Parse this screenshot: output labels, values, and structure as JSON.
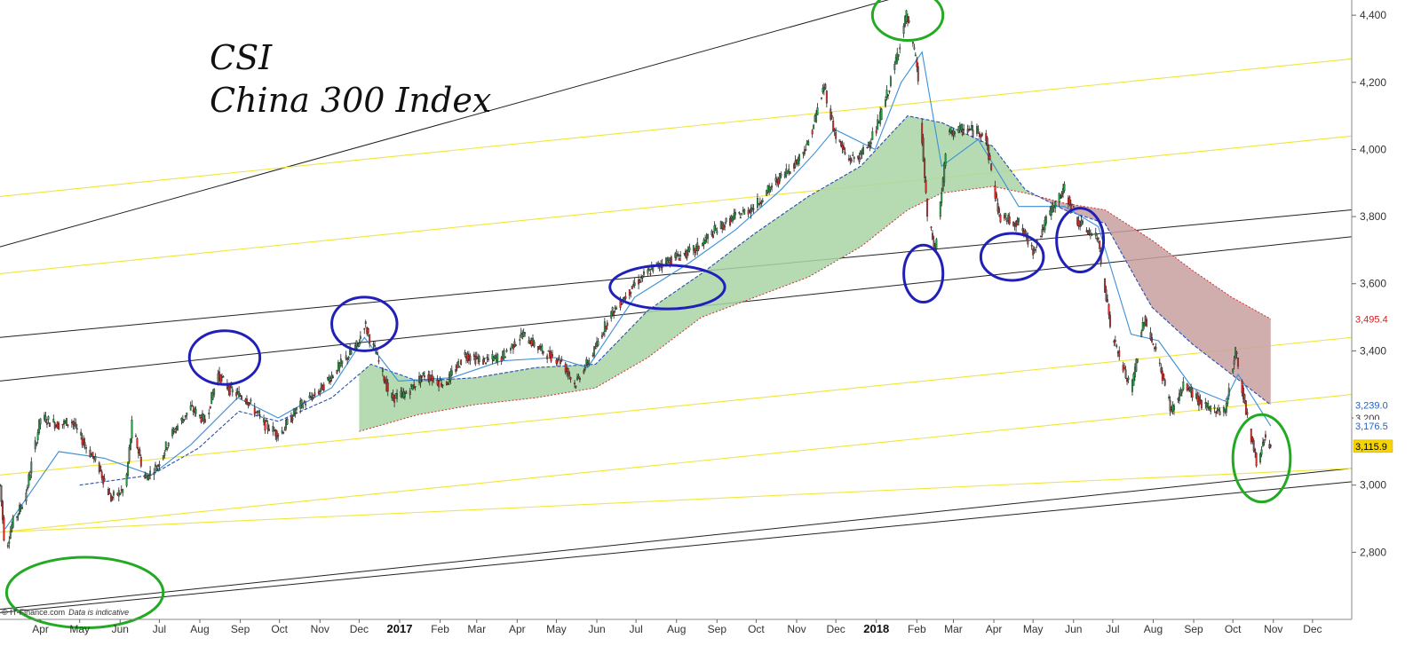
{
  "chart_data": {
    "type": "candlestick",
    "title": [
      "CSI",
      "China 300 Index"
    ],
    "credit": "© IT-Finance.com",
    "credit_note": "Data is indicative",
    "y_axis": {
      "position": "right",
      "range": [
        2600,
        4440
      ],
      "ticks": [
        2800,
        3000,
        3200,
        3400,
        3600,
        3800,
        4000,
        4200,
        4400
      ],
      "tick_labels": [
        "2,800",
        "3,000",
        "3,200",
        "3,400",
        "3,600",
        "3,800",
        "4,000",
        "4,200",
        "4,400"
      ]
    },
    "x_axis": {
      "range": [
        "2016-03-01",
        "2018-12-31"
      ],
      "labels": [
        {
          "date": "2016-04-01",
          "text": "Apr"
        },
        {
          "date": "2016-05-01",
          "text": "May"
        },
        {
          "date": "2016-06-01",
          "text": "Jun"
        },
        {
          "date": "2016-07-01",
          "text": "Jul"
        },
        {
          "date": "2016-08-01",
          "text": "Aug"
        },
        {
          "date": "2016-09-01",
          "text": "Sep"
        },
        {
          "date": "2016-10-01",
          "text": "Oct"
        },
        {
          "date": "2016-11-01",
          "text": "Nov"
        },
        {
          "date": "2016-12-01",
          "text": "Dec"
        },
        {
          "date": "2017-01-01",
          "text": "2017",
          "year": true
        },
        {
          "date": "2017-02-01",
          "text": "Feb"
        },
        {
          "date": "2017-03-01",
          "text": "Mar"
        },
        {
          "date": "2017-04-01",
          "text": "Apr"
        },
        {
          "date": "2017-05-01",
          "text": "May"
        },
        {
          "date": "2017-06-01",
          "text": "Jun"
        },
        {
          "date": "2017-07-01",
          "text": "Jul"
        },
        {
          "date": "2017-08-01",
          "text": "Aug"
        },
        {
          "date": "2017-09-01",
          "text": "Sep"
        },
        {
          "date": "2017-10-01",
          "text": "Oct"
        },
        {
          "date": "2017-11-01",
          "text": "Nov"
        },
        {
          "date": "2017-12-01",
          "text": "Dec"
        },
        {
          "date": "2018-01-01",
          "text": "2018",
          "year": true
        },
        {
          "date": "2018-02-01",
          "text": "Feb"
        },
        {
          "date": "2018-03-01",
          "text": "Mar"
        },
        {
          "date": "2018-04-01",
          "text": "Apr"
        },
        {
          "date": "2018-05-01",
          "text": "May"
        },
        {
          "date": "2018-06-01",
          "text": "Jun"
        },
        {
          "date": "2018-07-01",
          "text": "Jul"
        },
        {
          "date": "2018-08-01",
          "text": "Aug"
        },
        {
          "date": "2018-09-01",
          "text": "Sep"
        },
        {
          "date": "2018-10-01",
          "text": "Oct"
        },
        {
          "date": "2018-11-01",
          "text": "Nov"
        },
        {
          "date": "2018-12-01",
          "text": "Dec"
        }
      ]
    },
    "price_path": [
      [
        "2016-03-01",
        3000
      ],
      [
        "2016-03-05",
        2800
      ],
      [
        "2016-03-10",
        2880
      ],
      [
        "2016-03-20",
        2960
      ],
      [
        "2016-04-01",
        3200
      ],
      [
        "2016-04-15",
        3180
      ],
      [
        "2016-04-25",
        3190
      ],
      [
        "2016-05-05",
        3120
      ],
      [
        "2016-05-15",
        3060
      ],
      [
        "2016-05-25",
        2960
      ],
      [
        "2016-06-05",
        2990
      ],
      [
        "2016-06-10",
        3180
      ],
      [
        "2016-06-20",
        3020
      ],
      [
        "2016-06-30",
        3060
      ],
      [
        "2016-07-10",
        3150
      ],
      [
        "2016-07-25",
        3230
      ],
      [
        "2016-08-05",
        3190
      ],
      [
        "2016-08-15",
        3330
      ],
      [
        "2016-08-25",
        3280
      ],
      [
        "2016-09-05",
        3260
      ],
      [
        "2016-09-20",
        3180
      ],
      [
        "2016-10-01",
        3150
      ],
      [
        "2016-10-15",
        3230
      ],
      [
        "2016-10-31",
        3280
      ],
      [
        "2016-11-15",
        3350
      ],
      [
        "2016-11-30",
        3420
      ],
      [
        "2016-12-05",
        3480
      ],
      [
        "2016-12-15",
        3380
      ],
      [
        "2016-12-25",
        3260
      ],
      [
        "2017-01-05",
        3270
      ],
      [
        "2017-01-20",
        3330
      ],
      [
        "2017-02-05",
        3300
      ],
      [
        "2017-02-20",
        3390
      ],
      [
        "2017-03-05",
        3370
      ],
      [
        "2017-03-20",
        3380
      ],
      [
        "2017-04-05",
        3450
      ],
      [
        "2017-04-20",
        3400
      ],
      [
        "2017-05-05",
        3370
      ],
      [
        "2017-05-15",
        3300
      ],
      [
        "2017-05-30",
        3400
      ],
      [
        "2017-06-10",
        3500
      ],
      [
        "2017-06-30",
        3600
      ],
      [
        "2017-07-15",
        3650
      ],
      [
        "2017-07-31",
        3680
      ],
      [
        "2017-08-15",
        3700
      ],
      [
        "2017-08-31",
        3760
      ],
      [
        "2017-09-15",
        3800
      ],
      [
        "2017-09-30",
        3830
      ],
      [
        "2017-10-15",
        3900
      ],
      [
        "2017-10-31",
        3960
      ],
      [
        "2017-11-10",
        4020
      ],
      [
        "2017-11-22",
        4190
      ],
      [
        "2017-11-30",
        4050
      ],
      [
        "2017-12-10",
        3970
      ],
      [
        "2017-12-20",
        3980
      ],
      [
        "2018-01-01",
        4060
      ],
      [
        "2018-01-12",
        4200
      ],
      [
        "2018-01-24",
        4400
      ],
      [
        "2018-02-01",
        4250
      ],
      [
        "2018-02-09",
        3800
      ],
      [
        "2018-02-15",
        3700
      ],
      [
        "2018-02-25",
        4050
      ],
      [
        "2018-03-10",
        4060
      ],
      [
        "2018-03-25",
        4050
      ],
      [
        "2018-04-05",
        3800
      ],
      [
        "2018-04-20",
        3780
      ],
      [
        "2018-05-01",
        3700
      ],
      [
        "2018-05-15",
        3820
      ],
      [
        "2018-05-25",
        3880
      ],
      [
        "2018-06-05",
        3780
      ],
      [
        "2018-06-20",
        3730
      ],
      [
        "2018-06-30",
        3450
      ],
      [
        "2018-07-15",
        3280
      ],
      [
        "2018-07-25",
        3500
      ],
      [
        "2018-08-05",
        3370
      ],
      [
        "2018-08-15",
        3220
      ],
      [
        "2018-08-25",
        3300
      ],
      [
        "2018-09-10",
        3230
      ],
      [
        "2018-09-25",
        3220
      ],
      [
        "2018-10-03",
        3400
      ],
      [
        "2018-10-12",
        3200
      ],
      [
        "2018-10-20",
        3050
      ],
      [
        "2018-10-25",
        3150
      ],
      [
        "2018-10-30",
        3116
      ]
    ],
    "moving_averages": {
      "fast": [
        [
          "2016-03-05",
          2870
        ],
        [
          "2016-04-15",
          3100
        ],
        [
          "2016-05-20",
          3080
        ],
        [
          "2016-06-25",
          3030
        ],
        [
          "2016-07-25",
          3120
        ],
        [
          "2016-08-30",
          3260
        ],
        [
          "2016-09-30",
          3200
        ],
        [
          "2016-11-10",
          3290
        ],
        [
          "2016-12-05",
          3440
        ],
        [
          "2016-12-31",
          3310
        ],
        [
          "2017-02-10",
          3320
        ],
        [
          "2017-03-20",
          3370
        ],
        [
          "2017-04-30",
          3380
        ],
        [
          "2017-05-25",
          3350
        ],
        [
          "2017-06-30",
          3560
        ],
        [
          "2017-08-10",
          3660
        ],
        [
          "2017-09-15",
          3760
        ],
        [
          "2017-10-20",
          3880
        ],
        [
          "2017-11-15",
          3990
        ],
        [
          "2017-11-30",
          4060
        ],
        [
          "2017-12-31",
          4000
        ],
        [
          "2018-01-20",
          4200
        ],
        [
          "2018-02-05",
          4290
        ],
        [
          "2018-02-20",
          3950
        ],
        [
          "2018-03-20",
          4030
        ],
        [
          "2018-04-20",
          3830
        ],
        [
          "2018-05-25",
          3830
        ],
        [
          "2018-06-20",
          3770
        ],
        [
          "2018-07-15",
          3450
        ],
        [
          "2018-08-05",
          3430
        ],
        [
          "2018-08-31",
          3290
        ],
        [
          "2018-09-25",
          3250
        ],
        [
          "2018-10-05",
          3330
        ],
        [
          "2018-10-30",
          3176
        ]
      ],
      "medium": [
        [
          "2016-05-01",
          3000
        ],
        [
          "2016-06-25",
          3030
        ],
        [
          "2016-07-31",
          3110
        ],
        [
          "2016-08-31",
          3220
        ],
        [
          "2016-09-30",
          3190
        ],
        [
          "2016-11-10",
          3260
        ],
        [
          "2016-12-10",
          3360
        ],
        [
          "2017-01-15",
          3310
        ],
        [
          "2017-02-28",
          3320
        ],
        [
          "2017-04-15",
          3350
        ],
        [
          "2017-05-31",
          3360
        ],
        [
          "2017-07-10",
          3520
        ],
        [
          "2017-08-20",
          3630
        ],
        [
          "2017-09-30",
          3750
        ],
        [
          "2017-11-10",
          3860
        ],
        [
          "2017-12-20",
          3950
        ],
        [
          "2018-01-25",
          4100
        ],
        [
          "2018-02-20",
          4080
        ],
        [
          "2018-03-31",
          4010
        ],
        [
          "2018-04-25",
          3880
        ],
        [
          "2018-05-25",
          3820
        ],
        [
          "2018-06-25",
          3780
        ],
        [
          "2018-07-31",
          3530
        ],
        [
          "2018-08-31",
          3420
        ],
        [
          "2018-09-30",
          3330
        ],
        [
          "2018-10-30",
          3239
        ]
      ],
      "slow": [
        [
          "2016-12-01",
          3160
        ],
        [
          "2017-01-15",
          3210
        ],
        [
          "2017-02-28",
          3240
        ],
        [
          "2017-04-15",
          3260
        ],
        [
          "2017-05-31",
          3290
        ],
        [
          "2017-07-10",
          3380
        ],
        [
          "2017-08-20",
          3500
        ],
        [
          "2017-09-30",
          3560
        ],
        [
          "2017-11-10",
          3620
        ],
        [
          "2017-12-20",
          3710
        ],
        [
          "2018-01-25",
          3820
        ],
        [
          "2018-02-20",
          3870
        ],
        [
          "2018-03-31",
          3890
        ],
        [
          "2018-04-25",
          3870
        ],
        [
          "2018-05-25",
          3840
        ],
        [
          "2018-06-25",
          3820
        ],
        [
          "2018-07-31",
          3730
        ],
        [
          "2018-08-31",
          3640
        ],
        [
          "2018-09-30",
          3560
        ],
        [
          "2018-10-30",
          3495
        ]
      ]
    },
    "price_tags": [
      {
        "value": 3495.4,
        "text": "3,495.4",
        "color": "#d22020",
        "fill": "#ffffff"
      },
      {
        "value": 3239.0,
        "text": "3,239.0",
        "color": "#2060d0",
        "fill": "#ffffff"
      },
      {
        "value": 3200.0,
        "text": "3,200",
        "color": "#333333",
        "fill": "#ffffff"
      },
      {
        "value": 3176.5,
        "text": "3,176.5",
        "color": "#2060d0",
        "fill": "#ffffff"
      },
      {
        "value": 3115.9,
        "text": "3,115.9",
        "color": "#000000",
        "fill": "#f5d400"
      }
    ],
    "trend_lines": {
      "black": [
        [
          [
            "2016-03-01",
            3710
          ],
          [
            "2018-12-31",
            4830
          ]
        ],
        [
          [
            "2016-03-01",
            3440
          ],
          [
            "2018-12-31",
            3820
          ]
        ],
        [
          [
            "2016-03-01",
            3310
          ],
          [
            "2018-12-31",
            3740
          ]
        ],
        [
          [
            "2016-03-01",
            2630
          ],
          [
            "2018-12-31",
            3050
          ]
        ],
        [
          [
            "2016-03-01",
            2620
          ],
          [
            "2018-12-31",
            3010
          ]
        ]
      ],
      "yellow": [
        [
          [
            "2016-03-01",
            3860
          ],
          [
            "2018-12-31",
            4270
          ]
        ],
        [
          [
            "2016-03-01",
            3630
          ],
          [
            "2018-12-31",
            4040
          ]
        ],
        [
          [
            "2016-03-01",
            3030
          ],
          [
            "2018-12-31",
            3440
          ]
        ],
        [
          [
            "2016-03-01",
            2860
          ],
          [
            "2018-12-31",
            3270
          ]
        ],
        [
          [
            "2016-03-01",
            2860
          ],
          [
            "2018-12-31",
            3050
          ]
        ]
      ]
    },
    "ellipse_markers": [
      {
        "center": [
          "2016-05-05",
          2680
        ],
        "radius_days": 60,
        "radius_value": 105,
        "color": "#22aa22"
      },
      {
        "center": [
          "2016-08-20",
          3380
        ],
        "radius_days": 27,
        "radius_value": 80,
        "color": "#2020b8"
      },
      {
        "center": [
          "2016-12-05",
          3480
        ],
        "radius_days": 25,
        "radius_value": 80,
        "color": "#2020b8"
      },
      {
        "center": [
          "2017-07-25",
          3590
        ],
        "radius_days": 44,
        "radius_value": 65,
        "color": "#2020b8"
      },
      {
        "center": [
          "2018-01-25",
          4400
        ],
        "radius_days": 27,
        "radius_value": 75,
        "color": "#22aa22"
      },
      {
        "center": [
          "2018-02-06",
          3630
        ],
        "radius_days": 15,
        "radius_value": 85,
        "color": "#2020b8"
      },
      {
        "center": [
          "2018-04-15",
          3680
        ],
        "radius_days": 24,
        "radius_value": 70,
        "color": "#2020b8"
      },
      {
        "center": [
          "2018-06-06",
          3730
        ],
        "radius_days": 18,
        "radius_value": 95,
        "color": "#2020b8"
      },
      {
        "center": [
          "2018-10-23",
          3080
        ],
        "radius_days": 22,
        "radius_value": 130,
        "color": "#22aa22"
      }
    ]
  }
}
